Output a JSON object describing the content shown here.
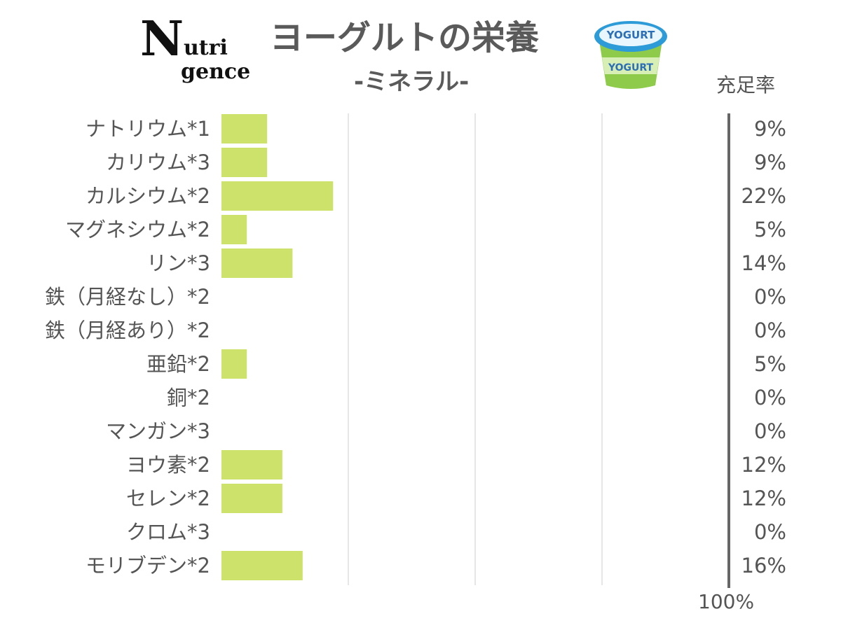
{
  "logo": {
    "line1": "N",
    "line2": "utri",
    "line3": "gence"
  },
  "header": {
    "title": "ヨーグルトの栄養",
    "subtitle": "-ミネラル-",
    "rate_label": "充足率",
    "cup_text": "YOGURT"
  },
  "chart_data": {
    "type": "bar",
    "orientation": "horizontal",
    "categories": [
      "ナトリウム*1",
      "カリウム*3",
      "カルシウム*2",
      "マグネシウム*2",
      "リン*3",
      "鉄（月経なし）*2",
      "鉄（月経あり）*2",
      "亜鉛*2",
      "銅*2",
      "マンガン*3",
      "ヨウ素*2",
      "セレン*2",
      "クロム*3",
      "モリブデン*2"
    ],
    "values": [
      9,
      9,
      22,
      5,
      14,
      0,
      0,
      5,
      0,
      0,
      12,
      12,
      0,
      16
    ],
    "value_labels": [
      "9%",
      "9%",
      "22%",
      "5%",
      "14%",
      "0%",
      "0%",
      "5%",
      "0%",
      "0%",
      "12%",
      "12%",
      "0%",
      "16%"
    ],
    "xlim": [
      0,
      100
    ],
    "x_end_label": "100%",
    "grid": true,
    "bar_color": "#cde26a"
  }
}
